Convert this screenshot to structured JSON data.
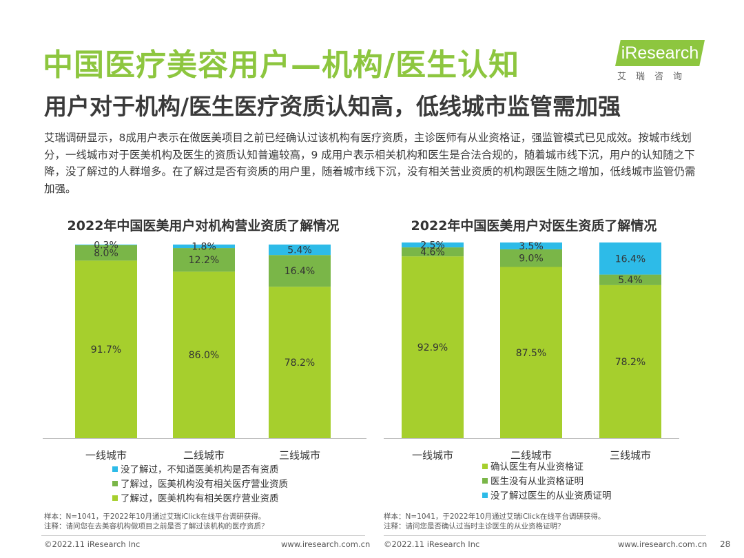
{
  "page": {
    "title": "中国医疗美容用户—机构/医生认知",
    "subtitle": "用户对于机构/医生医疗资质认知高，低线城市监管需加强",
    "description": "艾瑞调研显示，8成用户表示在做医美项目之前已经确认过该机构有医疗资质，主诊医师有从业资格证，强监管模式已见成效。按城市线划分，一线城市对于医美机构及医生的资质认知普遍较高，9 成用户表示相关机构和医生是合法合规的，随着城市线下沉，用户的认知随之下降，没了解过的人群增多。在了解过是否有资质的用户里，随着城市线下沉，没有相关营业资质的机构跟医生随之增加，低线城市监管仍需加强。",
    "page_number": "28"
  },
  "logo": {
    "mark": "iResearch",
    "sub": "艾瑞咨询"
  },
  "colors": {
    "bottom": "#a6cf2d",
    "middle": "#7ab648",
    "top": "#2dbbe8",
    "title": "#8dc63f"
  },
  "chart_data": [
    {
      "type": "bar",
      "stacked": true,
      "title": "2022年中国医美用户对机构营业资质了解情况",
      "categories": [
        "一线城市",
        "二线城市",
        "三线城市"
      ],
      "series": [
        {
          "name": "了解过，医美机构有相关医疗营业资质",
          "values": [
            91.7,
            86.0,
            78.2
          ],
          "labels": [
            "91.7%",
            "86.0%",
            "78.2%"
          ],
          "color": "#a6cf2d"
        },
        {
          "name": "了解过，医美机构没有相关医疗营业资质",
          "values": [
            8.0,
            12.2,
            16.4
          ],
          "labels": [
            "8.0%",
            "12.2%",
            "16.4%"
          ],
          "color": "#7ab648"
        },
        {
          "name": "没了解过，不知道医美机构是否有资质",
          "values": [
            0.3,
            1.8,
            5.4
          ],
          "labels": [
            "0.3%",
            "1.8%",
            "5.4%"
          ],
          "color": "#2dbbe8"
        }
      ],
      "legend_order": [
        2,
        1,
        0
      ],
      "ylim": [
        0,
        100
      ],
      "legend_position": "bottom"
    },
    {
      "type": "bar",
      "stacked": true,
      "title": "2022年中国医美用户对医生资质了解情况",
      "categories": [
        "一线城市",
        "二线城市",
        "三线城市"
      ],
      "series": [
        {
          "name": "确认医生有从业资格证",
          "values": [
            92.9,
            87.5,
            78.2
          ],
          "labels": [
            "92.9%",
            "87.5%",
            "78.2%"
          ],
          "color": "#a6cf2d"
        },
        {
          "name": "医生没有从业资格证明",
          "values": [
            4.6,
            9.0,
            5.4
          ],
          "labels": [
            "4.6%",
            "9.0%",
            "5.4%"
          ],
          "color": "#7ab648"
        },
        {
          "name": "没了解过医生的从业资质证明",
          "values": [
            2.5,
            3.5,
            16.4
          ],
          "labels": [
            "2.5%",
            "3.5%",
            "16.4%"
          ],
          "color": "#2dbbe8"
        }
      ],
      "legend_order": [
        0,
        1,
        2
      ],
      "ylim": [
        0,
        100
      ],
      "legend_position": "bottom"
    }
  ],
  "notes": [
    {
      "sample": "样本：N=1041，于2022年10月通过艾瑞iClick在线平台调研获得。",
      "question": "注释：请问您在去美容机构做项目之前是否了解过该机构的医疗资质？"
    },
    {
      "sample": "样本：N=1041，于2022年10月通过艾瑞iClick在线平台调研获得。",
      "question": "注释：请问您是否确认过当时主诊医生的从业资格证明？"
    }
  ],
  "footer": {
    "copyright": "©2022.11 iResearch Inc",
    "url": "www.iresearch.com.cn"
  }
}
